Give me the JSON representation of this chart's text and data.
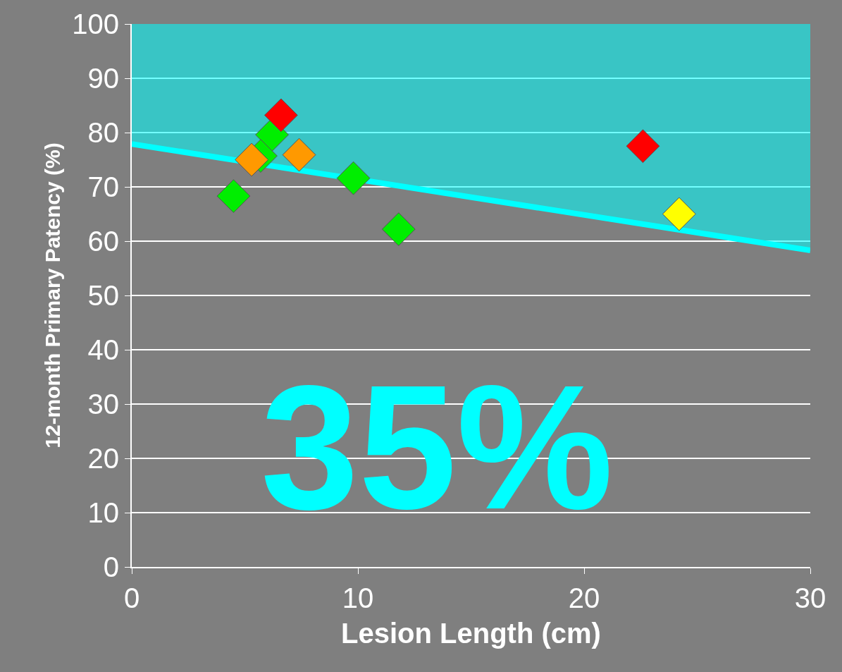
{
  "chart_data": {
    "type": "scatter",
    "xlabel": "Lesion Length (cm)",
    "ylabel": "12-month Primary Patency (%)",
    "xlim": [
      0,
      30
    ],
    "xticks": [
      0,
      10,
      20,
      30
    ],
    "ylim": [
      0,
      100
    ],
    "yticks": [
      0,
      10,
      20,
      30,
      40,
      50,
      60,
      70,
      80,
      90,
      100
    ],
    "grid": "y",
    "marker": "diamond",
    "annotations": [
      "35%"
    ],
    "series": [
      {
        "color": "#00ee00",
        "x": [
          6.2,
          5.7,
          4.5,
          9.8,
          11.8
        ],
        "values": [
          79.6,
          75.7,
          68.3,
          71.6,
          62.2
        ]
      },
      {
        "color": "#ff9900",
        "x": [
          5.3,
          7.4
        ],
        "values": [
          75.0,
          75.9
        ]
      },
      {
        "color": "#ff0000",
        "x": [
          6.6,
          22.6
        ],
        "values": [
          83.2,
          77.5
        ]
      },
      {
        "color": "#ffff00",
        "x": [
          24.2
        ],
        "values": [
          65.0
        ]
      },
      {
        "type": "line",
        "marker": "none",
        "color": "#00ffff",
        "x": [
          0,
          30
        ],
        "values": [
          77.9,
          58.3
        ],
        "lower": [
          77.9,
          58.3
        ],
        "upper": [
          100,
          100
        ]
      }
    ]
  }
}
